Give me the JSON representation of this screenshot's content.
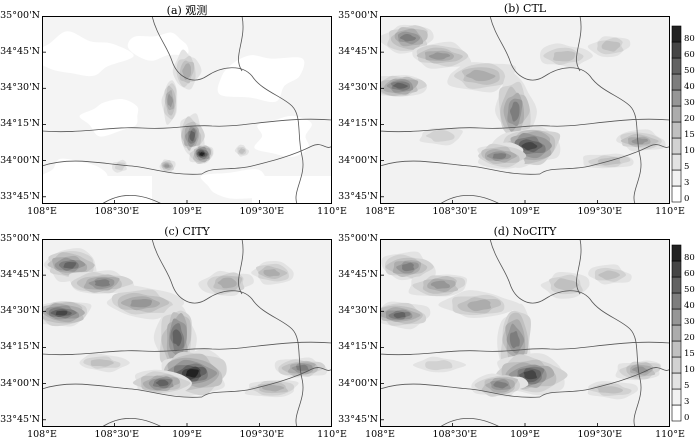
{
  "panels": [
    {
      "key": "a",
      "title": "(a) 观测"
    },
    {
      "key": "b",
      "title": "(b) CTL"
    },
    {
      "key": "c",
      "title": "(c) CITY"
    },
    {
      "key": "d",
      "title": "(d) NoCITY"
    }
  ],
  "axes": {
    "lat_ticks": [
      "35°00'N",
      "34°45'N",
      "34°30'N",
      "34°15'N",
      "34°00'N",
      "33°45'N"
    ],
    "lon_ticks": [
      "108°E",
      "108°30'E",
      "109°E",
      "109°30'E",
      "110°E"
    ],
    "lon_range": [
      108.0,
      110.0
    ],
    "lat_range": [
      33.7,
      35.0
    ]
  },
  "colorbar": {
    "levels": [
      "0",
      "3",
      "5",
      "10",
      "15",
      "20",
      "30",
      "40",
      "50",
      "60",
      "80"
    ],
    "colors": [
      "#ffffff",
      "#f2f2f2",
      "#e3e3e3",
      "#d2d2d2",
      "#c0c0c0",
      "#acacac",
      "#969696",
      "#7d7d7d",
      "#626262",
      "#454545",
      "#222222"
    ]
  }
}
